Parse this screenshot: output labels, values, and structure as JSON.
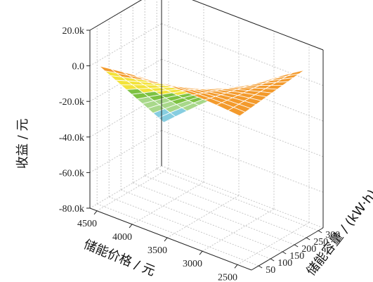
{
  "chart_data": {
    "type": "surface",
    "title": "",
    "xlabel": "储能价格 / 元",
    "ylabel": "储能容量 / (kW·h)",
    "zlabel": "收益 / 元",
    "x_ticks": [
      4500,
      4000,
      3500,
      3000,
      2500
    ],
    "y_ticks": [
      50,
      100,
      150,
      200,
      250,
      300
    ],
    "z_ticks": [
      20000,
      0,
      -20000,
      -40000,
      -60000,
      -80000
    ],
    "z_tick_labels": [
      "20.0k",
      "0.0",
      "-20.0k",
      "-40.0k",
      "-60.0k",
      "-80.0k"
    ],
    "xlim": [
      2300,
      4600
    ],
    "ylim": [
      20,
      320
    ],
    "zlim": [
      -80000,
      20000
    ],
    "grid": true,
    "colormap": [
      "#2b4fa8",
      "#3a7fc4",
      "#86cde0",
      "#a8d88a",
      "#7dc242",
      "#f3e33a",
      "#f39a2c",
      "#e02a2a"
    ],
    "color_levels": [
      -80000,
      -60000,
      -50000,
      -40000,
      -30000,
      -20000,
      -5000,
      8000,
      20000
    ],
    "surface": {
      "price_points": [
        4500,
        4250,
        4000,
        3750,
        3500,
        3250,
        3000,
        2750,
        2500
      ],
      "capacity_points": [
        30,
        65,
        100,
        135,
        170,
        205,
        240,
        275,
        300
      ],
      "note_z_corners": {
        "high_price_low_cap": 0,
        "high_price_high_cap": -50000,
        "low_price_high_cap": 12000,
        "low_price_low_cap": 2000
      }
    }
  }
}
